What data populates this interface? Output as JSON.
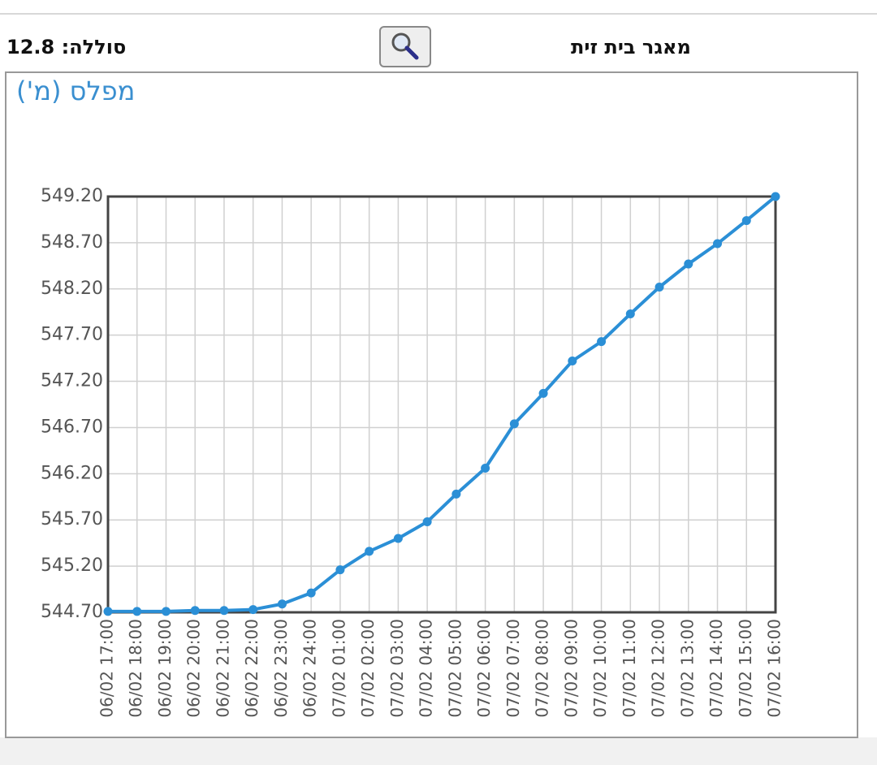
{
  "header": {
    "reservoir": "מאגר בית זית",
    "battery": "סוללה: 12.8"
  },
  "chart_data": {
    "type": "line",
    "y_label": "מפלס (מ')",
    "categories": [
      "06/02 17:00",
      "06/02 18:00",
      "06/02 19:00",
      "06/02 20:00",
      "06/02 21:00",
      "06/02 22:00",
      "06/02 23:00",
      "06/02 24:00",
      "07/02 01:00",
      "07/02 02:00",
      "07/02 03:00",
      "07/02 04:00",
      "07/02 05:00",
      "07/02 06:00",
      "07/02 07:00",
      "07/02 08:00",
      "07/02 09:00",
      "07/02 10:00",
      "07/02 11:00",
      "07/02 12:00",
      "07/02 13:00",
      "07/02 14:00",
      "07/02 15:00",
      "07/02 16:00"
    ],
    "values": [
      544.71,
      544.71,
      544.71,
      544.72,
      544.72,
      544.73,
      544.79,
      544.91,
      545.16,
      545.36,
      545.5,
      545.68,
      545.98,
      546.26,
      546.74,
      547.07,
      547.42,
      547.63,
      547.93,
      548.22,
      548.47,
      548.69,
      548.94,
      549.2
    ],
    "color": "#2b8fd6",
    "ylim": [
      544.7,
      549.2
    ],
    "yticks": [
      {
        "value": 544.7,
        "label": "544.70"
      },
      {
        "value": 545.2,
        "label": "545.20"
      },
      {
        "value": 545.7,
        "label": "545.70"
      },
      {
        "value": 546.2,
        "label": "546.20"
      },
      {
        "value": 546.7,
        "label": "546.70"
      },
      {
        "value": 547.2,
        "label": "547.20"
      },
      {
        "value": 547.7,
        "label": "547.70"
      },
      {
        "value": 548.2,
        "label": "548.20"
      },
      {
        "value": 548.7,
        "label": "548.70"
      },
      {
        "value": 549.2,
        "label": "549.20"
      }
    ],
    "grid": true
  }
}
